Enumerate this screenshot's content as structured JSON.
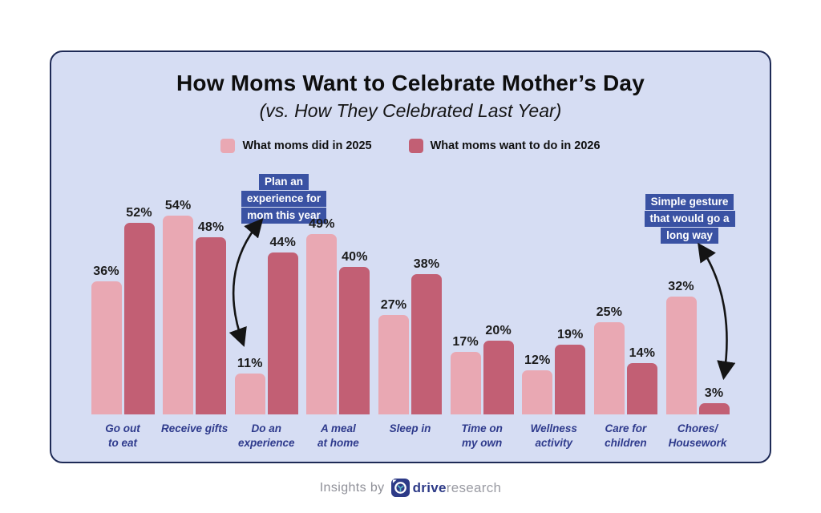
{
  "chart_data": {
    "type": "bar",
    "title": "How Moms Want to Celebrate Mother’s Day",
    "subtitle": "(vs. How They Celebrated Last Year)",
    "categories": [
      "Go out to eat",
      "Receive gifts",
      "Do an experience",
      "A meal at home",
      "Sleep in",
      "Time on my own",
      "Wellness activity",
      "Care for children",
      "Chores/Housework"
    ],
    "category_lines": [
      [
        "Go out",
        "to eat"
      ],
      [
        "Receive gifts"
      ],
      [
        "Do an",
        "experience"
      ],
      [
        "A meal",
        "at home"
      ],
      [
        "Sleep in"
      ],
      [
        "Time on",
        "my own"
      ],
      [
        "Wellness",
        "activity"
      ],
      [
        "Care for",
        "children"
      ],
      [
        "Chores/",
        "Housework"
      ]
    ],
    "series": [
      {
        "name": "What moms did in 2025",
        "color": "#E9A8B3",
        "values": [
          36,
          54,
          11,
          49,
          27,
          17,
          12,
          25,
          32
        ]
      },
      {
        "name": "What moms want to do in 2026",
        "color": "#C25F74",
        "values": [
          52,
          48,
          44,
          40,
          38,
          20,
          19,
          14,
          3
        ]
      }
    ],
    "value_suffix": "%",
    "ylim": [
      0,
      60
    ],
    "grid": false,
    "legend_position": "top-center",
    "annotations": [
      {
        "lines": [
          "Plan an",
          "experience for",
          "mom this year"
        ],
        "target_category": "Do an experience"
      },
      {
        "lines": [
          "Simple gesture",
          "that would go a",
          "long way"
        ],
        "target_category": "Chores/Housework"
      }
    ]
  },
  "footer": {
    "prefix": "Insights by",
    "brand_bold": "drive",
    "brand_light": "research"
  },
  "colors": {
    "card_background": "#D6DDF3",
    "card_border": "#1E2A56",
    "series_2025": "#E9A8B3",
    "series_2026": "#C25F74",
    "annotation_background": "#3A52A3",
    "annotation_text": "#FFFFFF",
    "category_label": "#2E3A8C",
    "value_label": "#1B1B1B",
    "arrow": "#141414",
    "brand_navy": "#2D3A87",
    "footer_gray": "#8F9098",
    "logo_accent_teal": "#58B7C6"
  }
}
